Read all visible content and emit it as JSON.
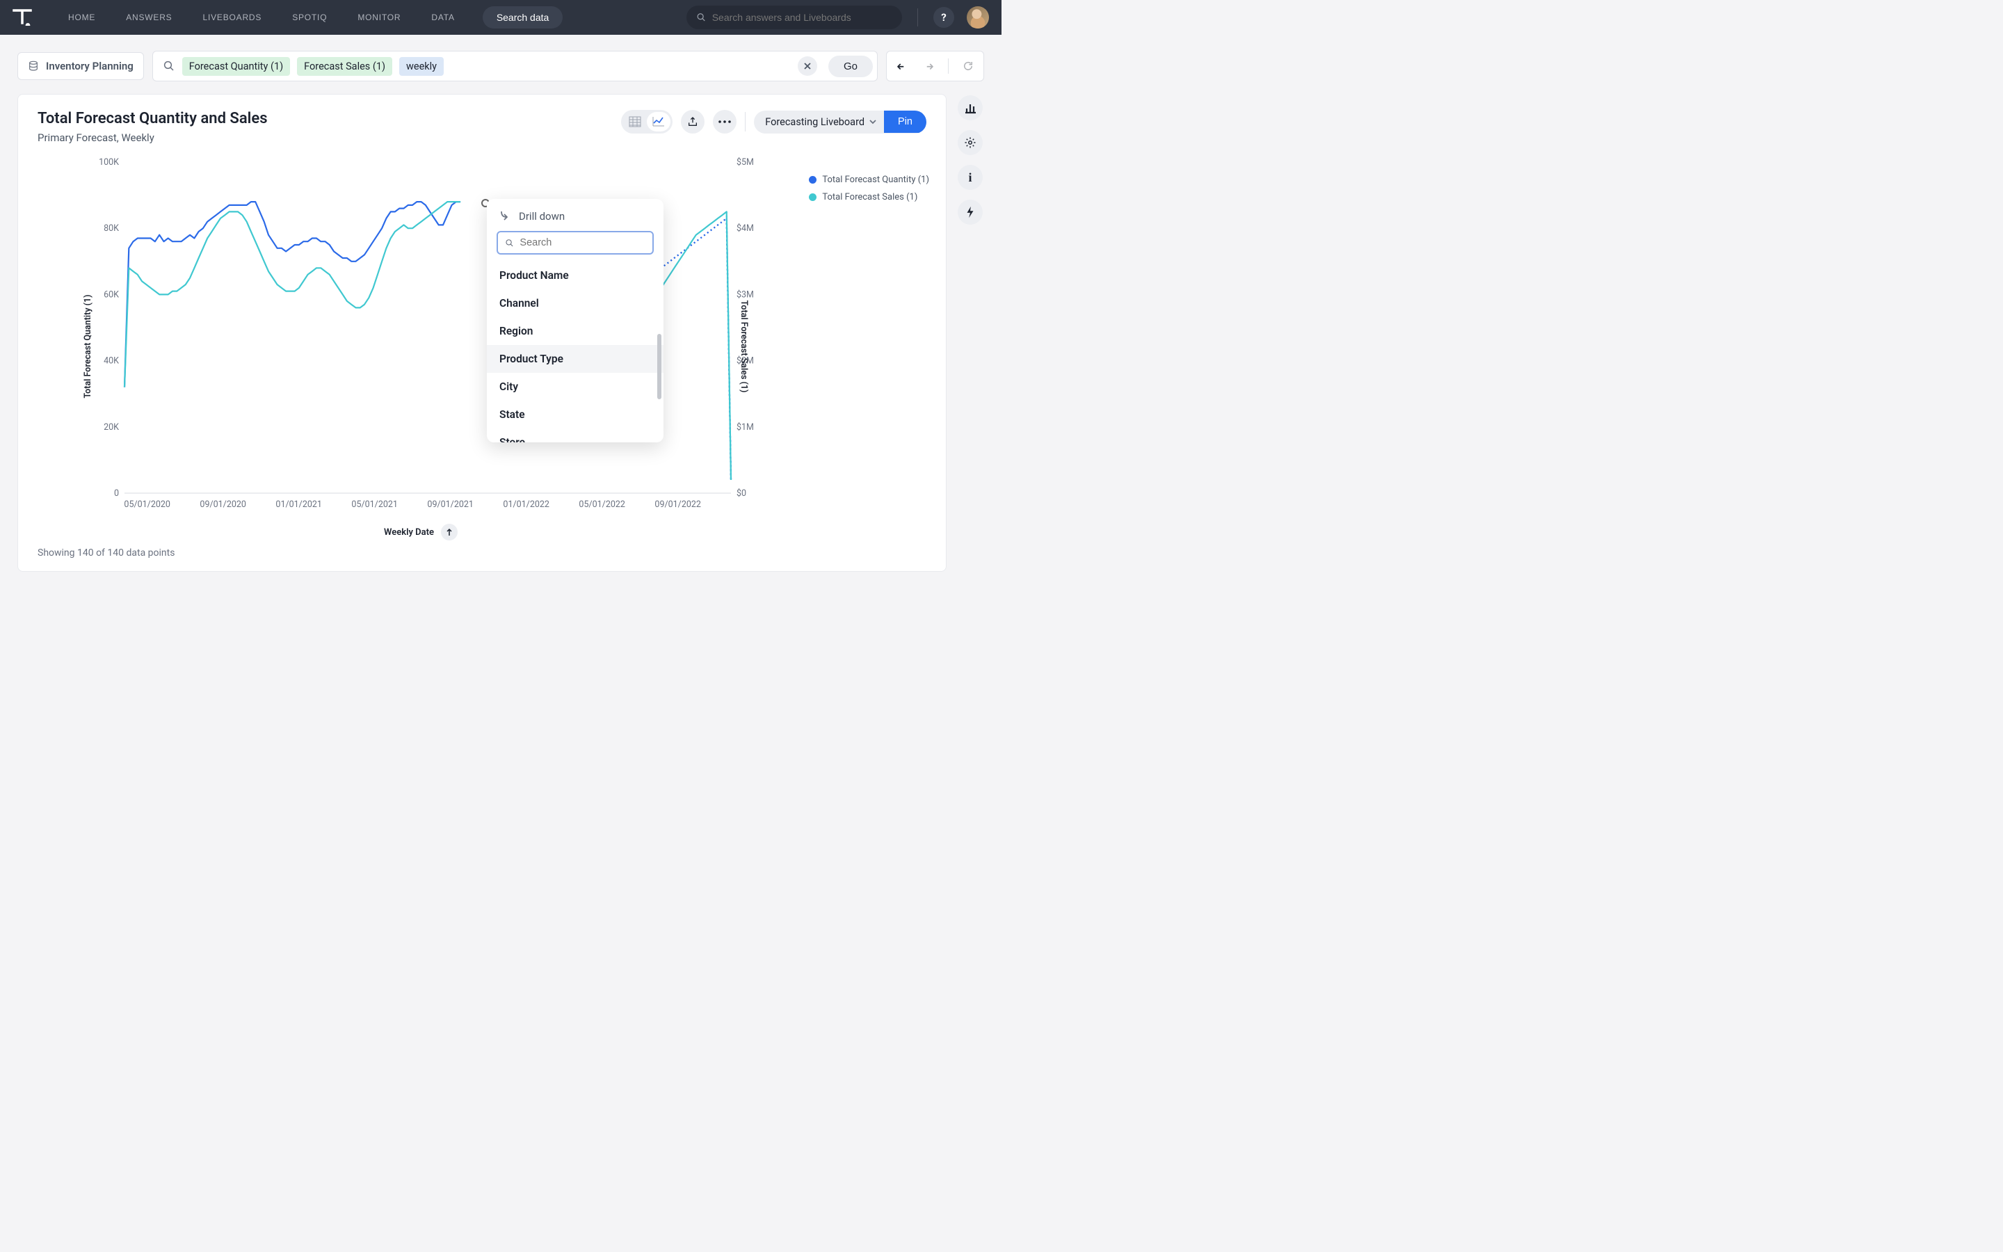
{
  "nav": {
    "items": [
      "HOME",
      "ANSWERS",
      "LIVEBOARDS",
      "SPOTIQ",
      "MONITOR",
      "DATA"
    ],
    "search_data_label": "Search data",
    "global_search_placeholder": "Search answers and Liveboards",
    "help_label": "?"
  },
  "toolbar": {
    "data_source": "Inventory Planning",
    "tokens": [
      {
        "text": "Forecast Quantity (1)",
        "color": "green"
      },
      {
        "text": "Forecast Sales (1)",
        "color": "green"
      },
      {
        "text": "weekly",
        "color": "blue"
      }
    ],
    "go_label": "Go"
  },
  "panel": {
    "title": "Total Forecast Quantity and Sales",
    "subtitle": "Primary Forecast, Weekly",
    "liveboard_select": "Forecasting Liveboard",
    "pin_label": "Pin",
    "data_points_text": "Showing 140 of 140 data points"
  },
  "chart": {
    "type": "line",
    "y_left_label": "Total Forecast Quantity (1)",
    "y_right_label": "Total Forecast Sales (1)",
    "x_label": "Weekly Date",
    "y_left_ticks": [
      "0",
      "20K",
      "40K",
      "60K",
      "80K",
      "100K"
    ],
    "y_right_ticks": [
      "$0",
      "$1M",
      "$2M",
      "$3M",
      "$4M",
      "$5M"
    ],
    "x_ticks": [
      "05/01/2020",
      "09/01/2020",
      "01/01/2021",
      "05/01/2021",
      "09/01/2021",
      "01/01/2022",
      "05/01/2022",
      "09/01/2022"
    ],
    "series": [
      {
        "name": "Total Forecast Quantity (1)",
        "color": "#2b6ae8",
        "stroke_width": 2.2,
        "values": [
          32,
          74,
          76,
          77,
          77,
          77,
          77,
          76,
          78,
          76,
          77,
          76,
          76,
          76,
          77,
          78,
          77,
          79,
          80,
          82,
          83,
          84,
          85,
          86,
          87,
          87,
          87,
          87,
          87,
          88,
          88,
          85,
          82,
          78,
          76,
          74,
          74,
          73,
          74,
          75,
          75,
          76,
          76,
          77,
          77,
          76,
          76,
          75,
          73,
          72,
          71,
          71,
          70,
          70,
          71,
          72,
          74,
          76,
          78,
          80,
          83,
          85,
          85,
          86,
          86,
          87,
          87,
          88,
          88,
          87,
          85,
          83,
          81,
          81,
          84,
          87,
          88,
          88,
          1,
          1,
          1,
          1,
          1,
          1,
          1,
          1,
          1,
          1,
          1,
          1,
          1,
          1,
          1,
          1,
          1,
          1,
          1,
          80,
          82,
          84,
          85,
          85,
          86,
          86,
          86,
          87,
          87,
          88,
          88,
          88,
          88,
          88,
          84,
          78,
          72,
          68,
          66,
          65,
          65,
          65,
          65,
          66,
          67,
          68,
          69,
          70,
          71,
          72,
          73,
          74,
          75,
          76,
          77,
          78,
          79,
          80,
          81,
          82,
          83,
          4
        ],
        "dashed_after_ratio": 0.56
      },
      {
        "name": "Total Forecast Sales (1)",
        "color": "#40c8d0",
        "stroke_width": 2.2,
        "values": [
          32,
          68,
          67,
          66,
          64,
          63,
          62,
          61,
          60,
          60,
          60,
          61,
          61,
          62,
          63,
          65,
          68,
          71,
          74,
          77,
          79,
          81,
          83,
          84,
          85,
          85,
          85,
          84,
          82,
          79,
          76,
          73,
          70,
          67,
          65,
          63,
          62,
          61,
          61,
          61,
          62,
          64,
          66,
          67,
          68,
          68,
          67,
          66,
          64,
          62,
          60,
          58,
          57,
          56,
          56,
          57,
          59,
          62,
          66,
          70,
          74,
          77,
          79,
          80,
          81,
          80,
          80,
          81,
          82,
          83,
          84,
          85,
          86,
          87,
          88,
          88,
          88,
          88,
          1,
          1,
          1,
          1,
          1,
          1,
          1,
          1,
          1,
          1,
          1,
          1,
          1,
          1,
          1,
          1,
          1,
          1,
          1,
          76,
          78,
          80,
          82,
          83,
          84,
          84,
          85,
          85,
          85,
          85,
          85,
          84,
          82,
          79,
          75,
          70,
          65,
          61,
          58,
          56,
          55,
          55,
          56,
          58,
          60,
          62,
          64,
          66,
          68,
          70,
          72,
          74,
          76,
          78,
          79,
          80,
          81,
          82,
          83,
          84,
          85,
          4
        ]
      }
    ],
    "legend": [
      {
        "label": "Total Forecast Quantity (1)",
        "color": "#2b6ae8"
      },
      {
        "label": "Total Forecast Sales (1)",
        "color": "#40c8d0"
      }
    ],
    "background": "#ffffff",
    "axis_line_color": "#d8dbe0"
  },
  "drill": {
    "title": "Drill down",
    "search_placeholder": "Search",
    "items": [
      "Product Name",
      "Channel",
      "Region",
      "Product Type",
      "City",
      "State",
      "Store"
    ],
    "hover_index": 3
  }
}
